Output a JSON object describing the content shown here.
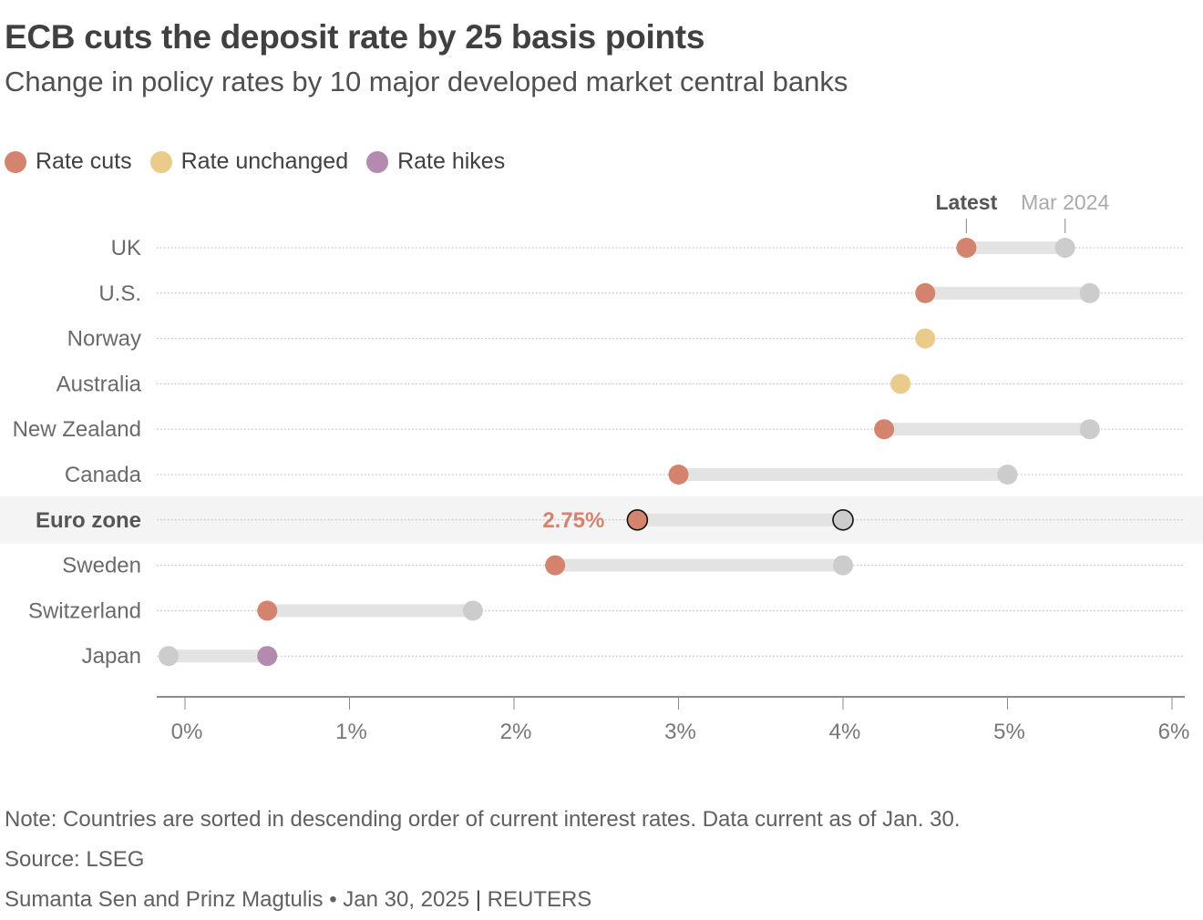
{
  "title": "ECB cuts the deposit rate by 25 basis points",
  "subtitle": "Change in policy rates by 10 major developed market central banks",
  "legend": [
    {
      "label": "Rate cuts",
      "color": "#d4846e"
    },
    {
      "label": "Rate unchanged",
      "color": "#ebcb8b"
    },
    {
      "label": "Rate hikes",
      "color": "#b48aaf"
    }
  ],
  "chart_data": {
    "type": "dumbbell",
    "series_labels": {
      "latest": "Latest",
      "previous": "Mar 2024"
    },
    "x_ticks": [
      "0%",
      "1%",
      "2%",
      "3%",
      "4%",
      "5%",
      "6%"
    ],
    "x_tick_values": [
      0,
      1,
      2,
      3,
      4,
      5,
      6
    ],
    "xlim": [
      -0.17,
      6.07
    ],
    "highlight": {
      "country": "Euro zone",
      "label": "2.75%"
    },
    "rows": [
      {
        "country": "UK",
        "latest": 4.75,
        "previous": 5.35,
        "status": "cut"
      },
      {
        "country": "U.S.",
        "latest": 4.5,
        "previous": 5.5,
        "status": "cut"
      },
      {
        "country": "Norway",
        "latest": 4.5,
        "previous": 4.5,
        "status": "unchanged"
      },
      {
        "country": "Australia",
        "latest": 4.35,
        "previous": 4.35,
        "status": "unchanged"
      },
      {
        "country": "New Zealand",
        "latest": 4.25,
        "previous": 5.5,
        "status": "cut"
      },
      {
        "country": "Canada",
        "latest": 3.0,
        "previous": 5.0,
        "status": "cut"
      },
      {
        "country": "Euro zone",
        "latest": 2.75,
        "previous": 4.0,
        "status": "cut"
      },
      {
        "country": "Sweden",
        "latest": 2.25,
        "previous": 4.0,
        "status": "cut"
      },
      {
        "country": "Switzerland",
        "latest": 0.5,
        "previous": 1.75,
        "status": "cut"
      },
      {
        "country": "Japan",
        "latest": 0.5,
        "previous": -0.1,
        "status": "hike"
      }
    ],
    "colors": {
      "cut": "#d4846e",
      "unchanged": "#ebcb8b",
      "hike": "#b48aaf",
      "previous": "#cccccc",
      "bar": "#e3e3e3"
    }
  },
  "footer": {
    "note": "Note: Countries are sorted in descending order of current interest rates. Data current as of Jan. 30.",
    "source": "Source: LSEG",
    "byline": "Sumanta Sen and Prinz Magtulis • Jan 30, 2025",
    "divider": "|",
    "brand": "REUTERS"
  }
}
